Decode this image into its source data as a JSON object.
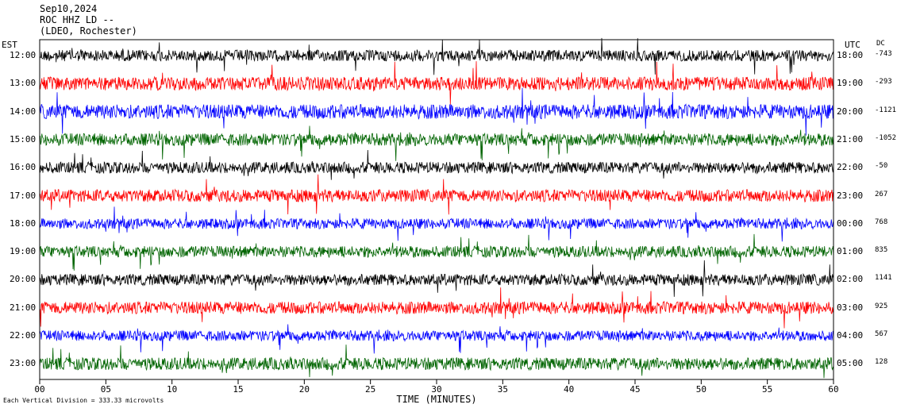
{
  "header": {
    "date": "Sep10,2024",
    "station": "ROC HHZ LD --",
    "network": "(LDEO, Rochester)"
  },
  "axis": {
    "left_title": "EST",
    "right_title": "UTC",
    "dc_title": "DC",
    "x_title": "TIME (MINUTES)",
    "footer": "Each Vertical Division =  333.33 microvolts"
  },
  "colors": [
    "#000000",
    "#ff0000",
    "#0000ff",
    "#006400"
  ],
  "chart_data": {
    "type": "line",
    "title": "Sep10,2024",
    "xlabel": "TIME (MINUTES)",
    "ylabel": "",
    "xlim": [
      0,
      60
    ],
    "x_ticks": [
      "00",
      "05",
      "10",
      "15",
      "20",
      "25",
      "30",
      "35",
      "40",
      "45",
      "50",
      "55",
      "60"
    ],
    "rows": [
      {
        "est": "12:00",
        "utc": "18:00",
        "dc": "-743",
        "color": "#000000",
        "amplitude": 0.55
      },
      {
        "est": "13:00",
        "utc": "19:00",
        "dc": "-293",
        "color": "#ff0000",
        "amplitude": 0.65
      },
      {
        "est": "14:00",
        "utc": "20:00",
        "dc": "-1121",
        "color": "#0000ff",
        "amplitude": 0.7
      },
      {
        "est": "15:00",
        "utc": "21:00",
        "dc": "-1052",
        "color": "#006400",
        "amplitude": 0.6
      },
      {
        "est": "16:00",
        "utc": "22:00",
        "dc": "-50",
        "color": "#000000",
        "amplitude": 0.55
      },
      {
        "est": "17:00",
        "utc": "23:00",
        "dc": "267",
        "color": "#ff0000",
        "amplitude": 0.6
      },
      {
        "est": "18:00",
        "utc": "00:00",
        "dc": "768",
        "color": "#0000ff",
        "amplitude": 0.5
      },
      {
        "est": "19:00",
        "utc": "01:00",
        "dc": "835",
        "color": "#006400",
        "amplitude": 0.55
      },
      {
        "est": "20:00",
        "utc": "02:00",
        "dc": "1141",
        "color": "#000000",
        "amplitude": 0.55
      },
      {
        "est": "21:00",
        "utc": "03:00",
        "dc": "925",
        "color": "#ff0000",
        "amplitude": 0.6
      },
      {
        "est": "22:00",
        "utc": "04:00",
        "dc": "567",
        "color": "#0000ff",
        "amplitude": 0.5
      },
      {
        "est": "23:00",
        "utc": "05:00",
        "dc": "128",
        "color": "#006400",
        "amplitude": 0.6
      }
    ]
  }
}
